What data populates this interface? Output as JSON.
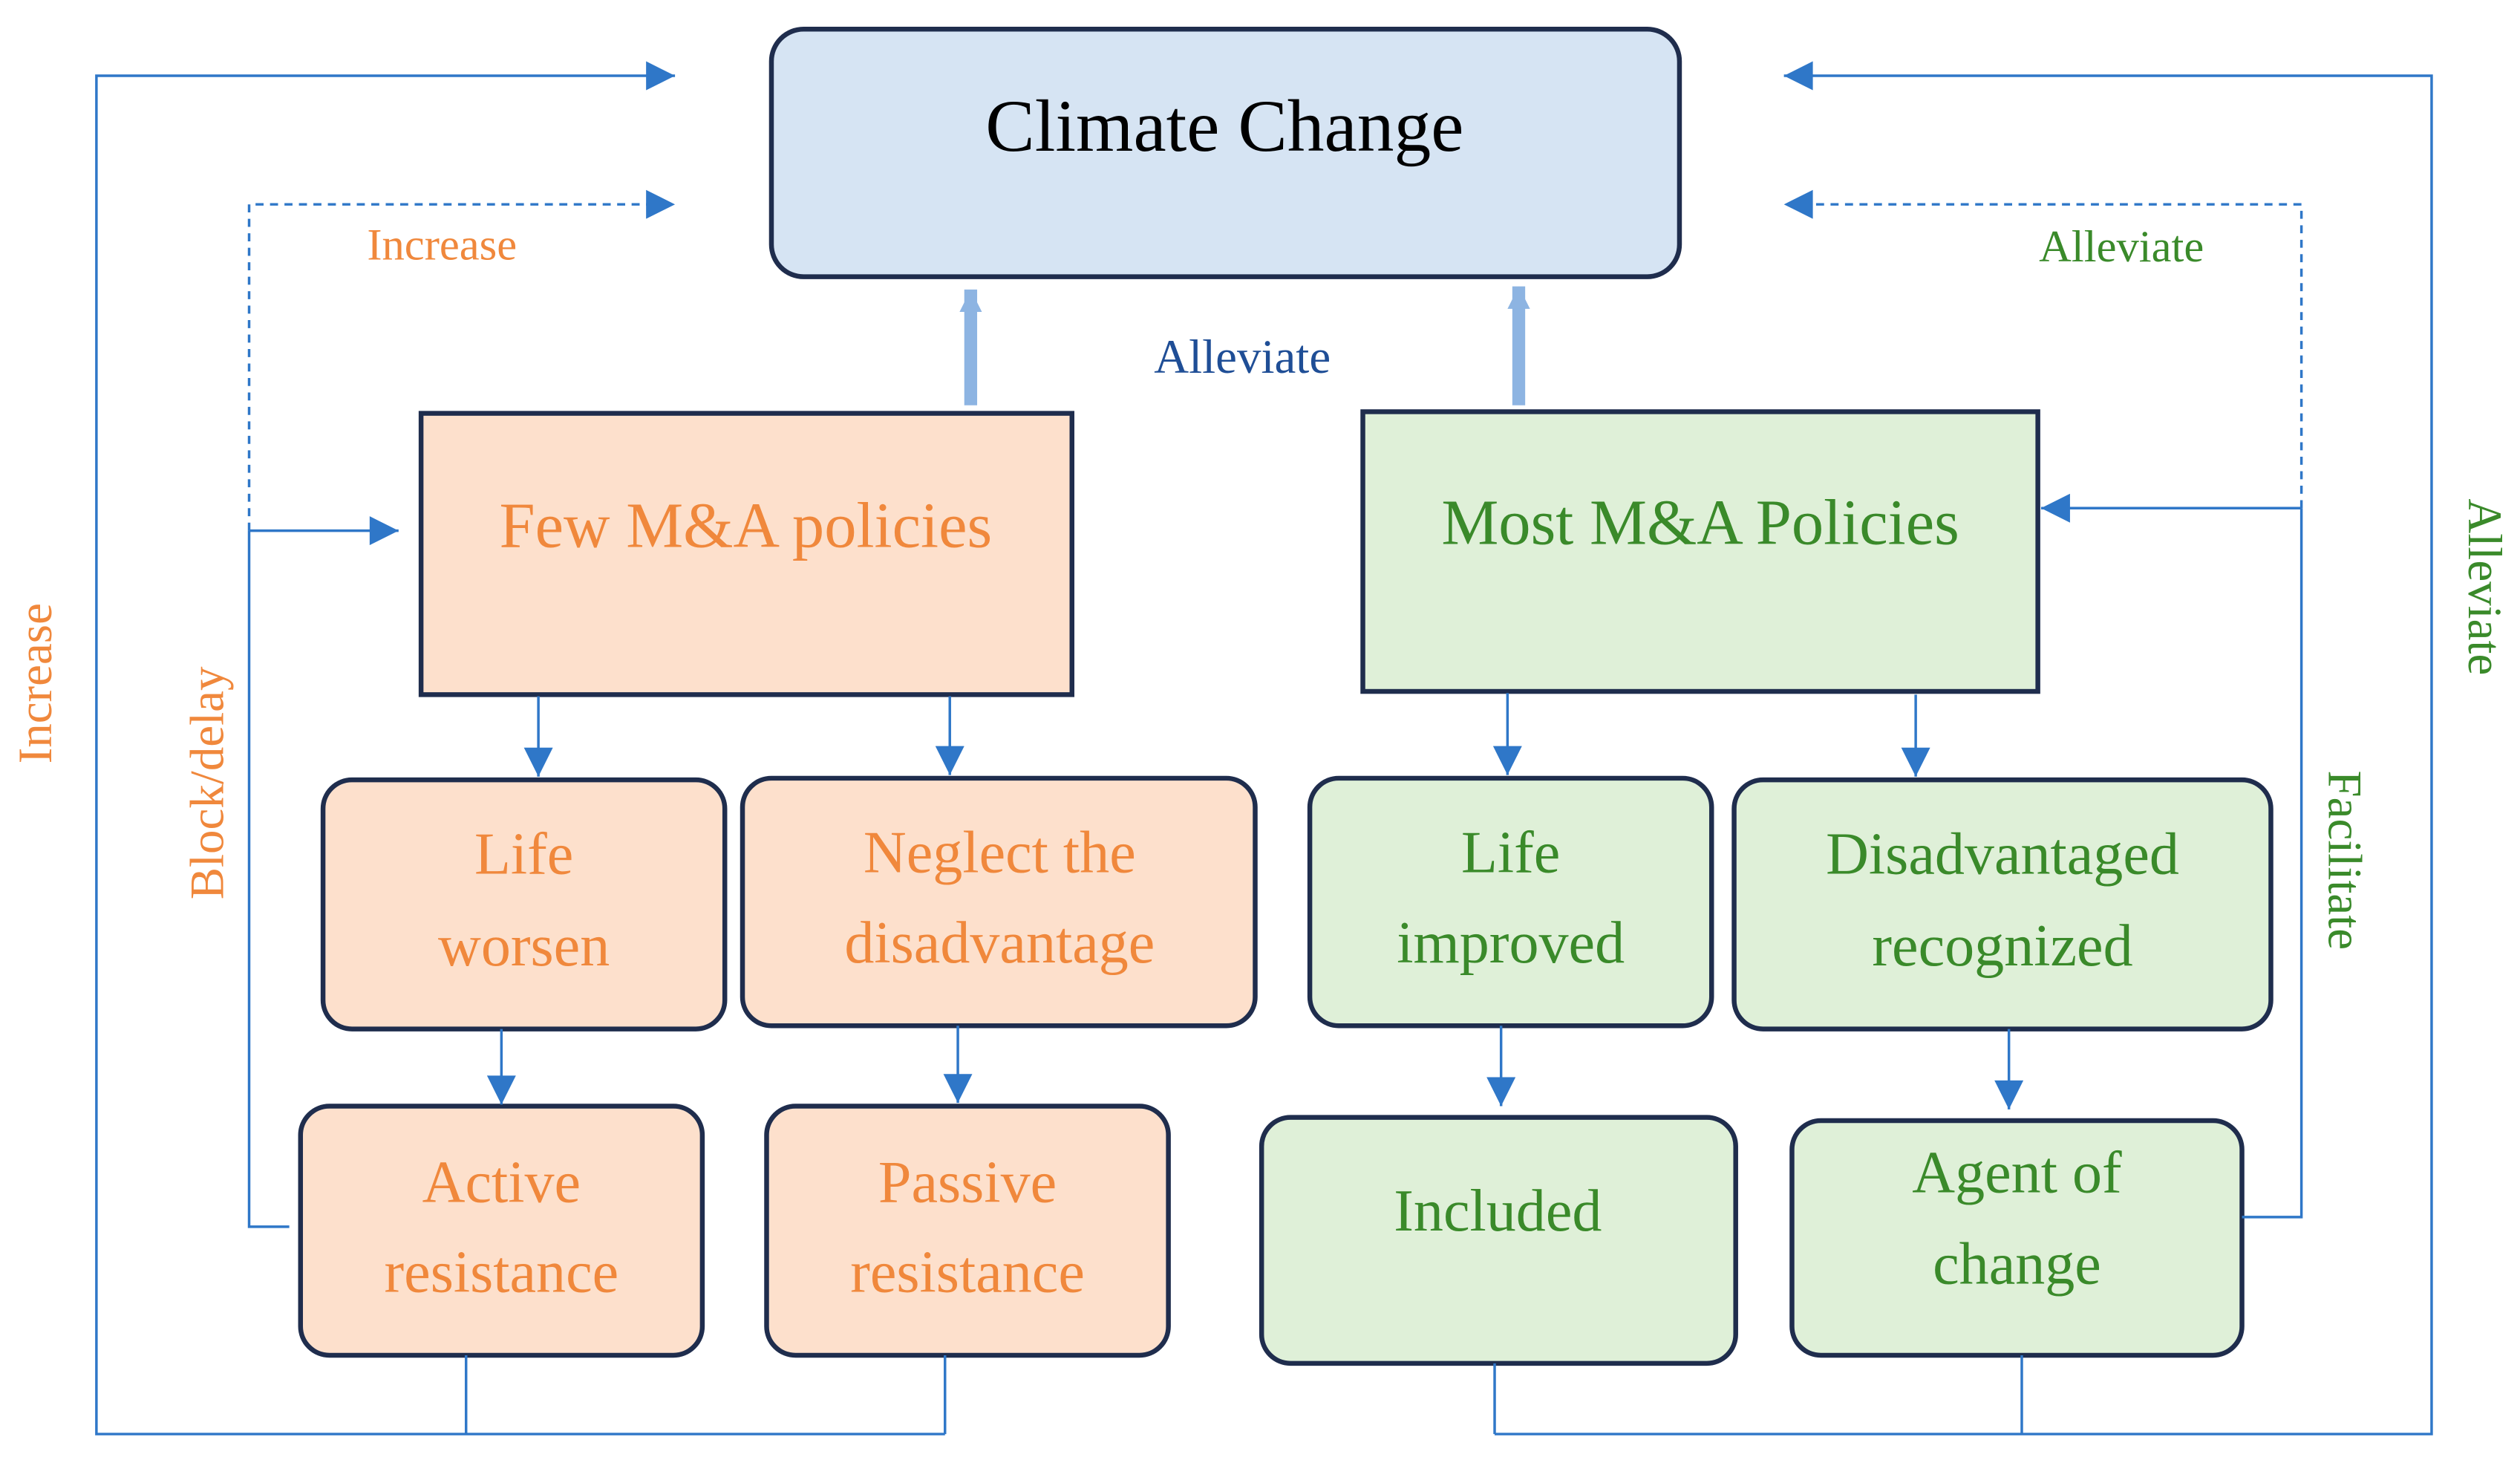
{
  "title": {
    "lines": [
      "Climate Change"
    ]
  },
  "nodes": [
    {
      "lines": [
        "Few M&A policies"
      ]
    },
    {
      "lines": [
        "Most M&A Policies"
      ]
    },
    {
      "lines": [
        "Life",
        "worsen"
      ]
    },
    {
      "lines": [
        "Neglect the",
        "disadvantage"
      ]
    },
    {
      "lines": [
        "Life",
        "improved"
      ]
    },
    {
      "lines": [
        "Disadvantaged",
        "recognized"
      ]
    },
    {
      "lines": [
        "Active",
        "resistance"
      ]
    },
    {
      "lines": [
        "Passive",
        "resistance"
      ]
    },
    {
      "lines": [
        "Included"
      ]
    },
    {
      "lines": [
        "Agent of",
        "change"
      ]
    }
  ],
  "edge_labels": [
    "Increase",
    "Alleviate",
    "Alleviate",
    "Increase",
    "Block/delay",
    "Alleviate",
    "Facilitate"
  ]
}
